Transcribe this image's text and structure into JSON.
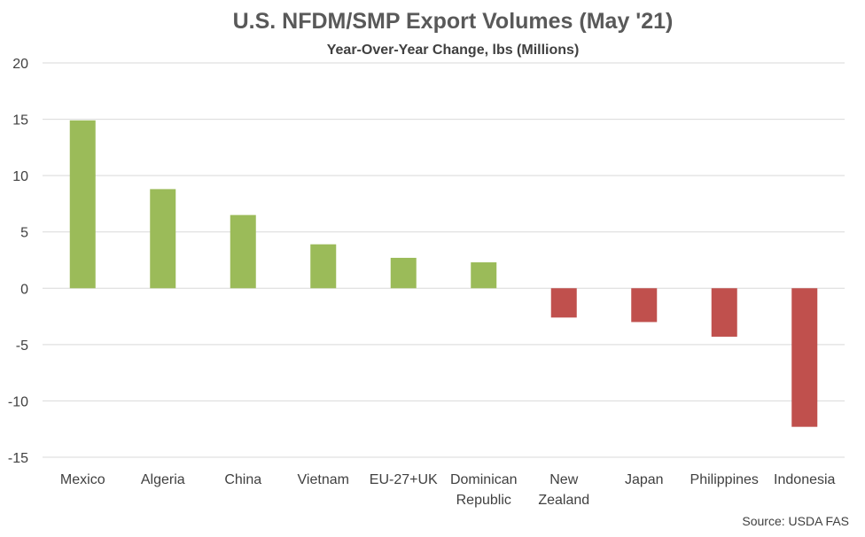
{
  "chart_data": {
    "type": "bar",
    "title": "U.S. NFDM/SMP Export Volumes (May '21)",
    "subtitle": "Year-Over-Year Change, lbs (Millions)",
    "source": "Source: USDA FAS",
    "categories": [
      "Mexico",
      "Algeria",
      "China",
      "Vietnam",
      "EU-27+UK",
      "Dominican Republic",
      "New Zealand",
      "Japan",
      "Philippines",
      "Indonesia"
    ],
    "category_lines": [
      [
        "Mexico"
      ],
      [
        "Algeria"
      ],
      [
        "China"
      ],
      [
        "Vietnam"
      ],
      [
        "EU-27+UK"
      ],
      [
        "Dominican",
        "Republic"
      ],
      [
        "New",
        "Zealand"
      ],
      [
        "Japan"
      ],
      [
        "Philippines"
      ],
      [
        "Indonesia"
      ]
    ],
    "values": [
      14.9,
      8.8,
      6.5,
      3.9,
      2.7,
      2.3,
      -2.6,
      -3.0,
      -4.3,
      -12.3
    ],
    "ylim": [
      -15,
      20
    ],
    "yticks": [
      20,
      15,
      10,
      5,
      0,
      -5,
      -10,
      -15
    ],
    "grid": true,
    "legend": "none",
    "colors": {
      "positive": "#9bbb59",
      "negative": "#c0504d",
      "grid": "#d9d9d9",
      "text": "#404040"
    }
  }
}
